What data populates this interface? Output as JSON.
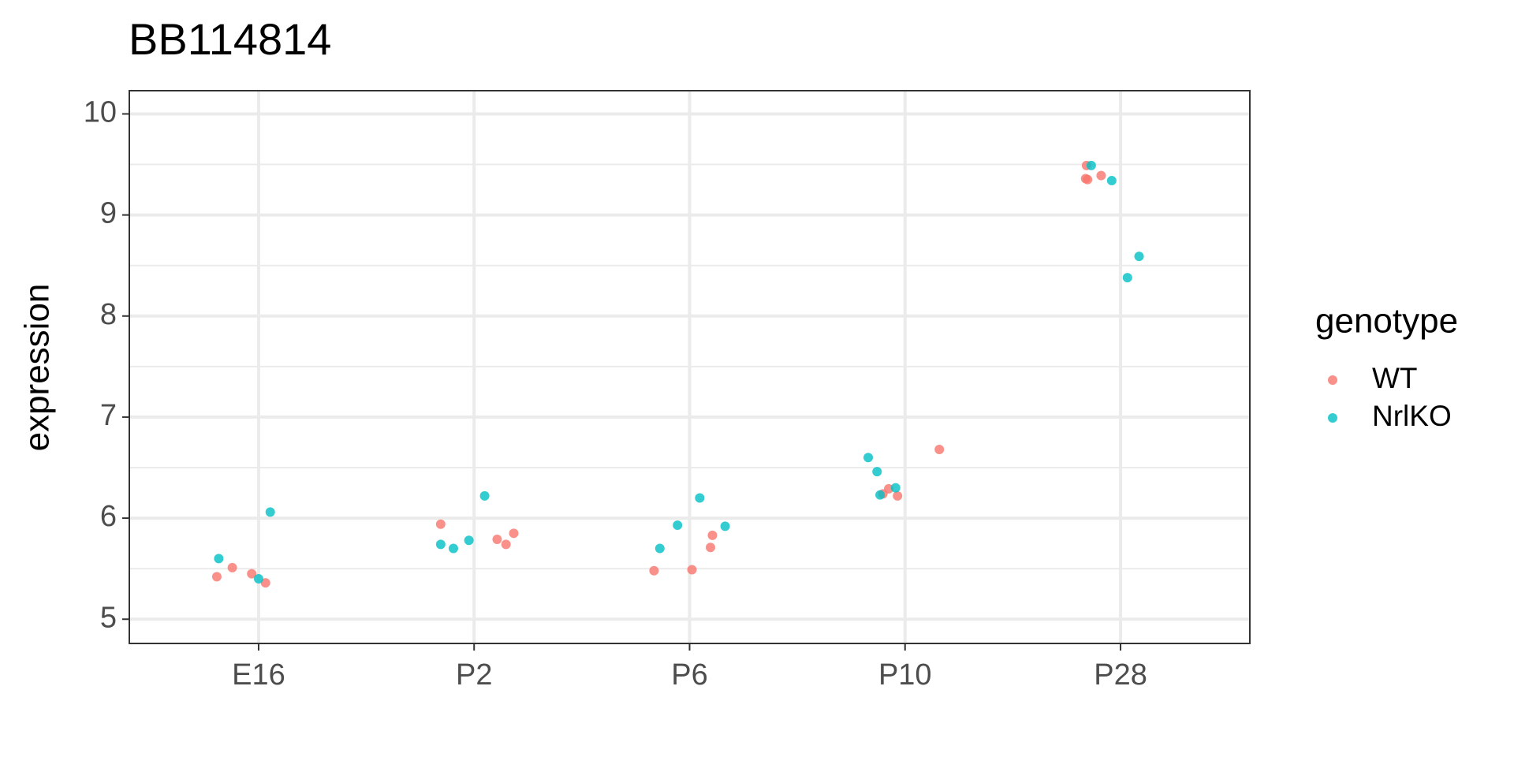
{
  "chart_data": {
    "type": "scatter",
    "title": "BB114814",
    "y_label": "expression",
    "legend_title": "genotype",
    "xlim": [
      0.4,
      5.6
    ],
    "ylim": [
      4.76,
      10.23
    ],
    "xticks": [
      {
        "value": 1,
        "label": "E16"
      },
      {
        "value": 2,
        "label": "P2"
      },
      {
        "value": 3,
        "label": "P6"
      },
      {
        "value": 4,
        "label": "P10"
      },
      {
        "value": 5,
        "label": "P28"
      }
    ],
    "yticks": [
      5,
      6,
      7,
      8,
      9,
      10
    ],
    "grid": true,
    "legend": "right",
    "series": [
      {
        "name": "WT",
        "color": "#F8766D",
        "x": [
          0.806,
          0.878,
          0.968,
          1.032,
          1.845,
          2.107,
          2.148,
          2.184,
          2.835,
          3.011,
          3.097,
          3.106,
          3.897,
          3.924,
          3.965,
          4.159,
          4.842,
          4.838,
          4.847,
          4.91
        ],
        "values": [
          5.42,
          5.51,
          5.45,
          5.36,
          5.94,
          5.79,
          5.74,
          5.85,
          5.48,
          5.49,
          5.71,
          5.83,
          6.24,
          6.29,
          6.22,
          6.68,
          9.49,
          9.36,
          9.35,
          9.39
        ]
      },
      {
        "name": "NrlKO",
        "color": "#00BFC4",
        "x": [
          0.815,
          1.0,
          1.054,
          1.845,
          1.904,
          1.976,
          2.049,
          2.862,
          2.944,
          3.047,
          3.165,
          3.829,
          3.87,
          3.884,
          3.956,
          4.864,
          4.959,
          5.032,
          5.086
        ],
        "values": [
          5.6,
          5.4,
          6.06,
          5.74,
          5.7,
          5.78,
          6.22,
          5.7,
          5.93,
          6.2,
          5.92,
          6.6,
          6.46,
          6.23,
          6.3,
          9.49,
          9.34,
          8.38,
          8.59
        ]
      }
    ]
  }
}
